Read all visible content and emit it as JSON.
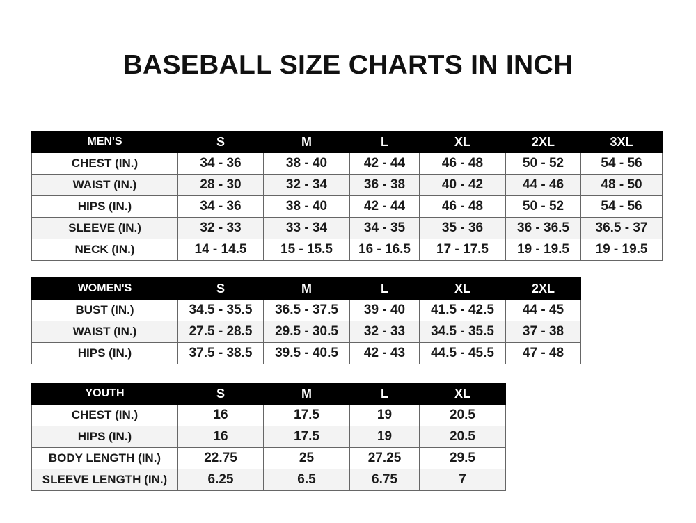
{
  "title": "BASEBALL SIZE CHARTS IN INCH",
  "tables": [
    {
      "id": "men",
      "headers": [
        "MEN'S",
        "S",
        "M",
        "L",
        "XL",
        "2XL",
        "3XL"
      ],
      "rows": [
        [
          "CHEST (IN.)",
          "34 - 36",
          "38 - 40",
          "42 - 44",
          "46 - 48",
          "50 - 52",
          "54 - 56"
        ],
        [
          "WAIST (IN.)",
          "28 - 30",
          "32 - 34",
          "36 - 38",
          "40 - 42",
          "44 - 46",
          "48 - 50"
        ],
        [
          "HIPS (IN.)",
          "34 - 36",
          "38 - 40",
          "42 - 44",
          "46 - 48",
          "50 - 52",
          "54 - 56"
        ],
        [
          "SLEEVE (IN.)",
          "32 - 33",
          "33 - 34",
          "34 - 35",
          "35 - 36",
          "36 - 36.5",
          "36.5 - 37"
        ],
        [
          "NECK (IN.)",
          "14 - 14.5",
          "15 - 15.5",
          "16 - 16.5",
          "17 - 17.5",
          "19 - 19.5",
          "19 - 19.5"
        ]
      ]
    },
    {
      "id": "women",
      "headers": [
        "WOMEN'S",
        "S",
        "M",
        "L",
        "XL",
        "2XL"
      ],
      "rows": [
        [
          "BUST (IN.)",
          "34.5 - 35.5",
          "36.5 - 37.5",
          "39 - 40",
          "41.5 - 42.5",
          "44 - 45"
        ],
        [
          "WAIST (IN.)",
          "27.5 - 28.5",
          "29.5 - 30.5",
          "32 - 33",
          "34.5 - 35.5",
          "37 - 38"
        ],
        [
          "HIPS (IN.)",
          "37.5 - 38.5",
          "39.5 - 40.5",
          "42 - 43",
          "44.5 - 45.5",
          "47 - 48"
        ]
      ]
    },
    {
      "id": "youth",
      "headers": [
        "YOUTH",
        "S",
        "M",
        "L",
        "XL"
      ],
      "rows": [
        [
          "CHEST (IN.)",
          "16",
          "17.5",
          "19",
          "20.5"
        ],
        [
          "HIPS (IN.)",
          "16",
          "17.5",
          "19",
          "20.5"
        ],
        [
          "BODY LENGTH (IN.)",
          "22.75",
          "25",
          "27.25",
          "29.5"
        ],
        [
          "SLEEVE LENGTH (IN.)",
          "6.25",
          "6.5",
          "6.75",
          "7"
        ]
      ]
    }
  ]
}
